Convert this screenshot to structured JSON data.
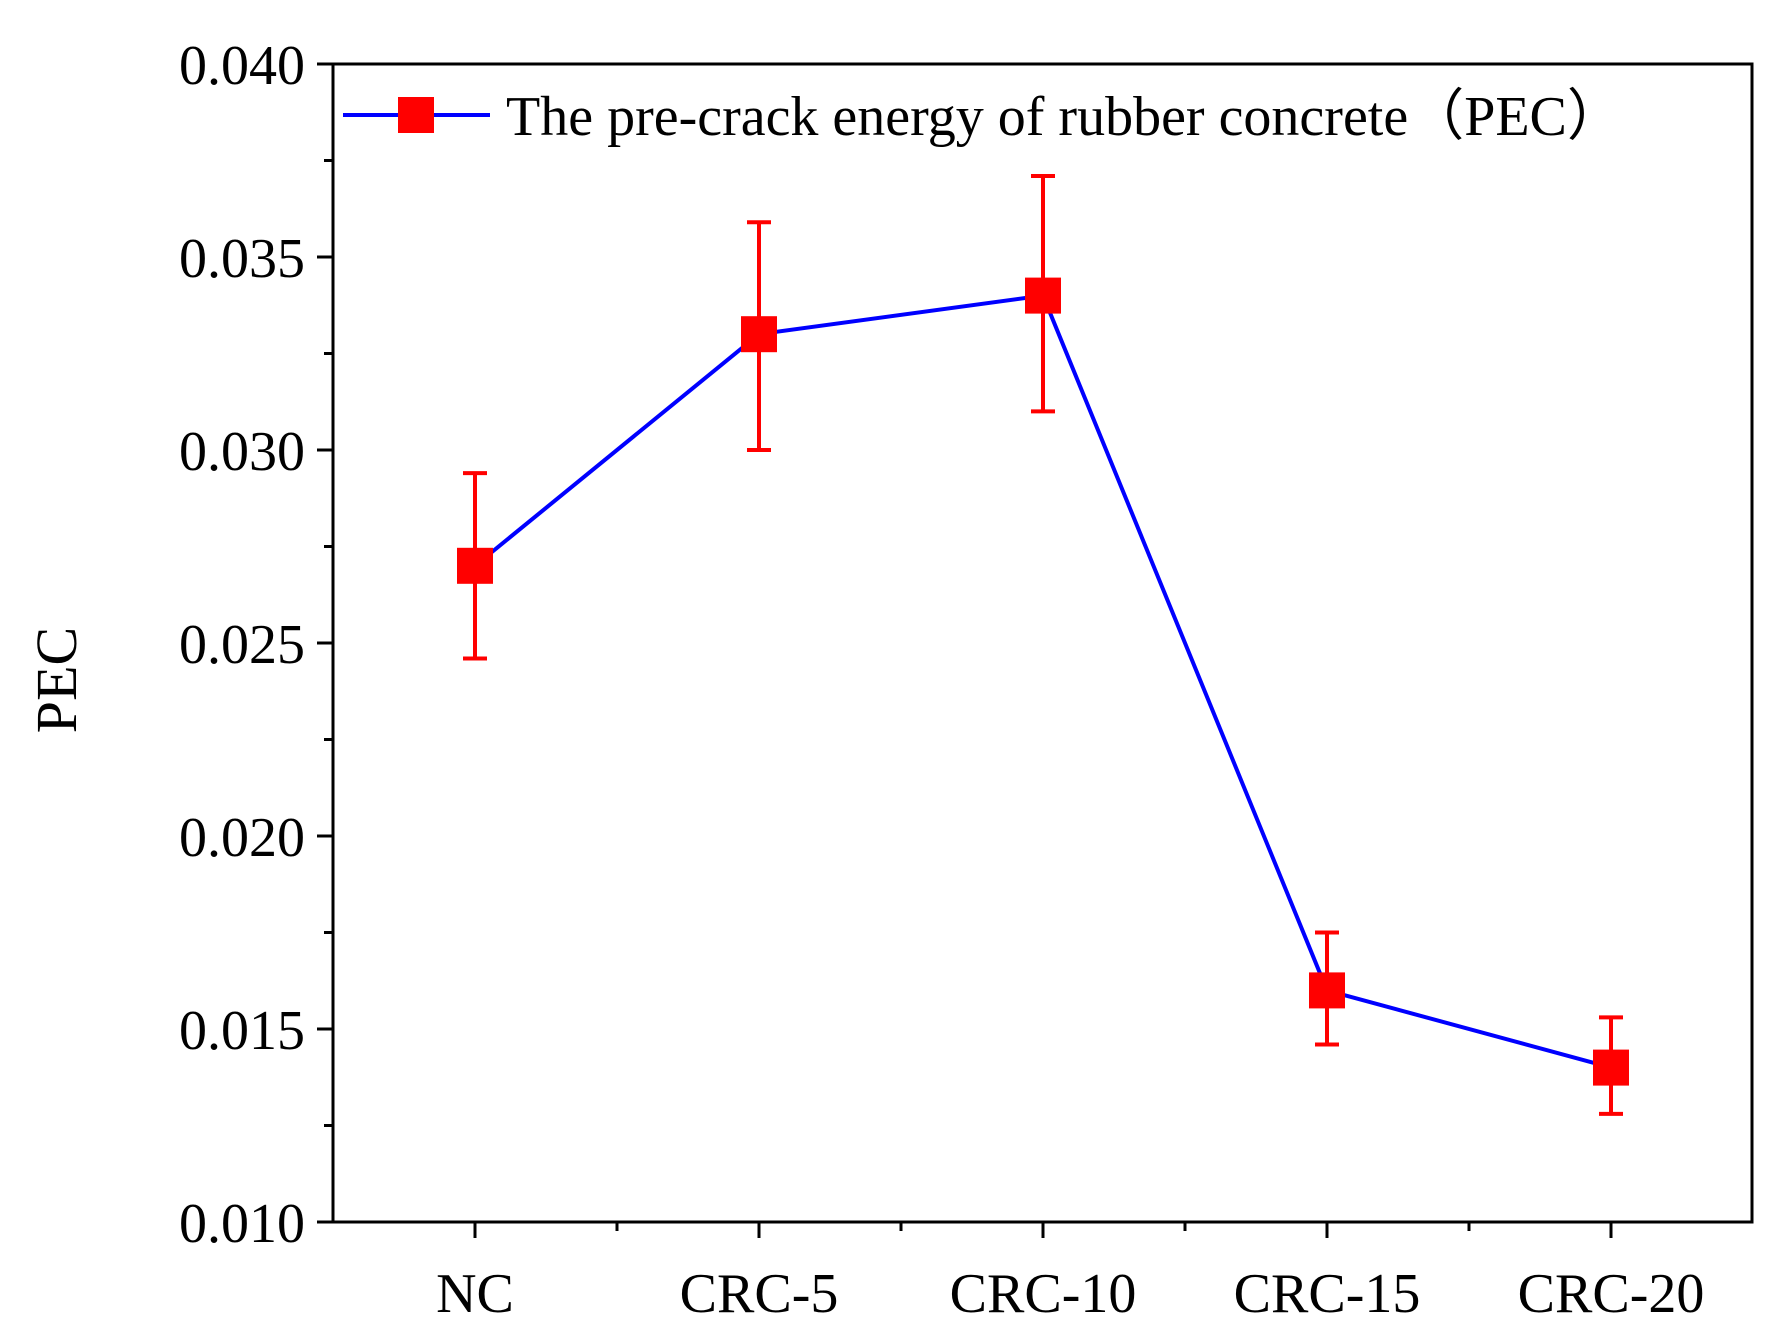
{
  "chart_data": {
    "type": "line",
    "title": "",
    "xlabel": "",
    "ylabel": "PEC",
    "categories": [
      "NC",
      "CRC-5",
      "CRC-10",
      "CRC-15",
      "CRC-20"
    ],
    "ylim": [
      0.01,
      0.04
    ],
    "yticks": [
      "0.010",
      "0.015",
      "0.020",
      "0.025",
      "0.030",
      "0.035",
      "0.040"
    ],
    "grid": false,
    "legend_position": "top-left",
    "series": [
      {
        "name": "The pre-crack energy of rubber concrete（PEC）",
        "values": [
          0.027,
          0.033,
          0.034,
          0.016,
          0.014
        ],
        "error_upper": [
          0.0294,
          0.0359,
          0.0371,
          0.0175,
          0.0153
        ],
        "error_lower": [
          0.0246,
          0.03,
          0.031,
          0.0146,
          0.0128
        ],
        "line_color": "#0000ff",
        "marker_color": "#ff0000",
        "marker": "square"
      }
    ]
  }
}
